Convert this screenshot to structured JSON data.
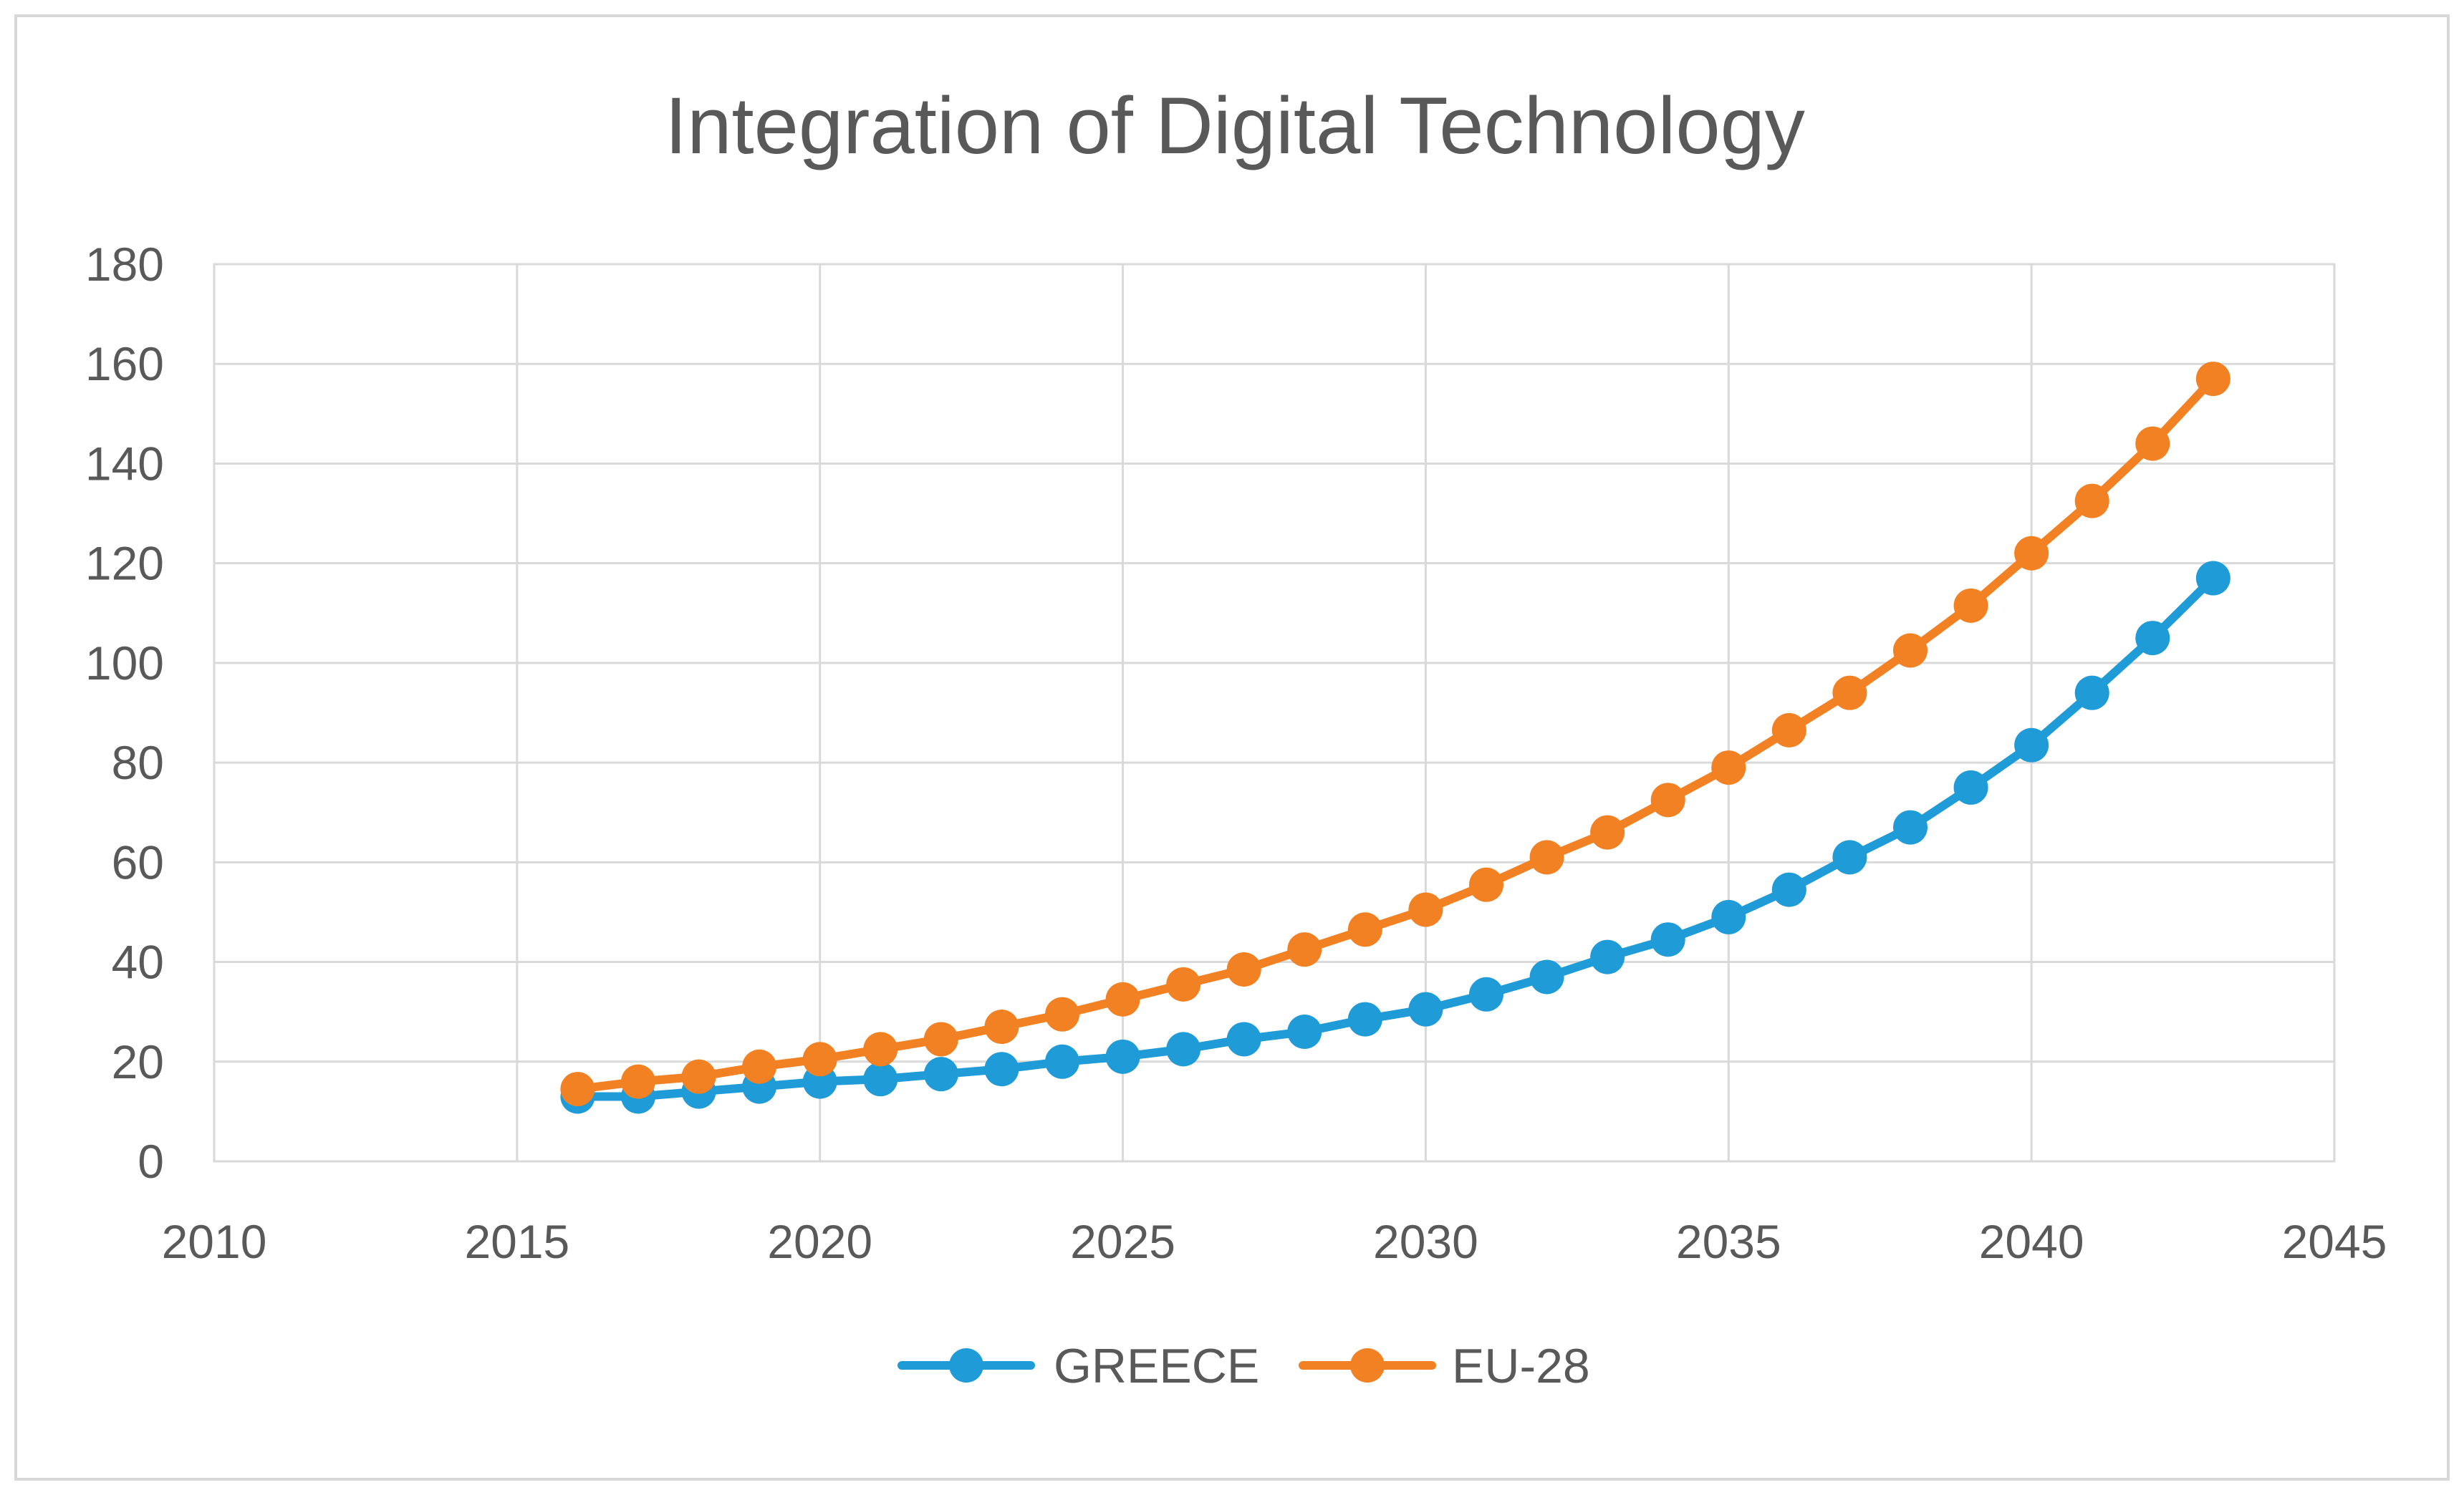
{
  "chart_data": {
    "type": "line",
    "title": "Integration of Digital Technology",
    "xlabel": "",
    "ylabel": "",
    "xlim": [
      2010,
      2045
    ],
    "ylim": [
      0,
      180
    ],
    "x_ticks": [
      2010,
      2015,
      2020,
      2025,
      2030,
      2035,
      2040,
      2045
    ],
    "y_ticks": [
      0,
      20,
      40,
      60,
      80,
      100,
      120,
      140,
      160,
      180
    ],
    "grid": true,
    "legend_position": "bottom-center",
    "x": [
      2016,
      2017,
      2018,
      2019,
      2020,
      2021,
      2022,
      2023,
      2024,
      2025,
      2026,
      2027,
      2028,
      2029,
      2030,
      2031,
      2032,
      2033,
      2034,
      2035,
      2036,
      2037,
      2038,
      2039,
      2040,
      2041,
      2042,
      2043
    ],
    "series": [
      {
        "name": "GREECE",
        "color": "#1f9bd7",
        "values": [
          13,
          13,
          14,
          15,
          16,
          16.5,
          17.5,
          18.5,
          20,
          21,
          22.5,
          24.5,
          26,
          28.5,
          30.5,
          33.5,
          37,
          41,
          44.5,
          49,
          54.5,
          61,
          67,
          75,
          83.5,
          94,
          105,
          117
        ]
      },
      {
        "name": "EU-28",
        "color": "#f28123",
        "values": [
          14.5,
          16,
          17,
          19,
          20.5,
          22.5,
          24.5,
          27,
          29.5,
          32.5,
          35.5,
          38.5,
          42.5,
          46.5,
          50.5,
          55.5,
          61,
          66,
          72.5,
          79,
          86.5,
          94,
          102.5,
          111.5,
          122,
          132.5,
          144,
          157
        ]
      }
    ]
  }
}
